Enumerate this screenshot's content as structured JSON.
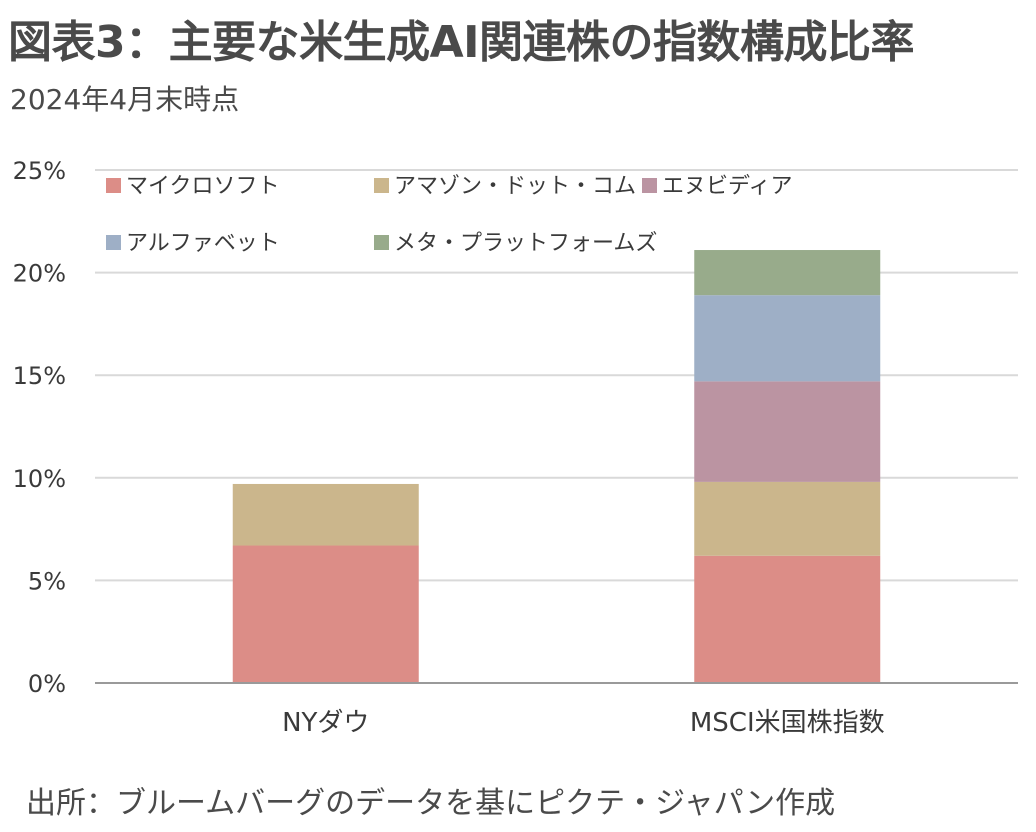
{
  "header": {
    "title": "図表3：主要な米生成AI関連株の指数構成比率",
    "subtitle": "2024年4月末時点"
  },
  "footer": {
    "source": "出所：ブルームバーグのデータを基にピクテ・ジャパン作成"
  },
  "chart_data": {
    "type": "bar",
    "stacked": true,
    "categories": [
      "NYダウ",
      "MSCI米国株指数"
    ],
    "series": [
      {
        "name": "マイクロソフト",
        "color": "#dc8d87",
        "values": [
          6.7,
          6.2
        ]
      },
      {
        "name": "アマゾン・ドット・コム",
        "color": "#cbb68c",
        "values": [
          3.0,
          3.6
        ]
      },
      {
        "name": "エヌビディア",
        "color": "#bb94a2",
        "values": [
          0,
          4.9
        ]
      },
      {
        "name": "アルファベット",
        "color": "#9eafc6",
        "values": [
          0,
          4.2
        ]
      },
      {
        "name": "メタ・プラットフォームズ",
        "color": "#98ab8b",
        "values": [
          0,
          2.2
        ]
      }
    ],
    "y_ticks": [
      "0%",
      "5%",
      "10%",
      "15%",
      "20%",
      "25%"
    ],
    "ylim": [
      0,
      25
    ],
    "grid": true,
    "legend_position": "top"
  }
}
